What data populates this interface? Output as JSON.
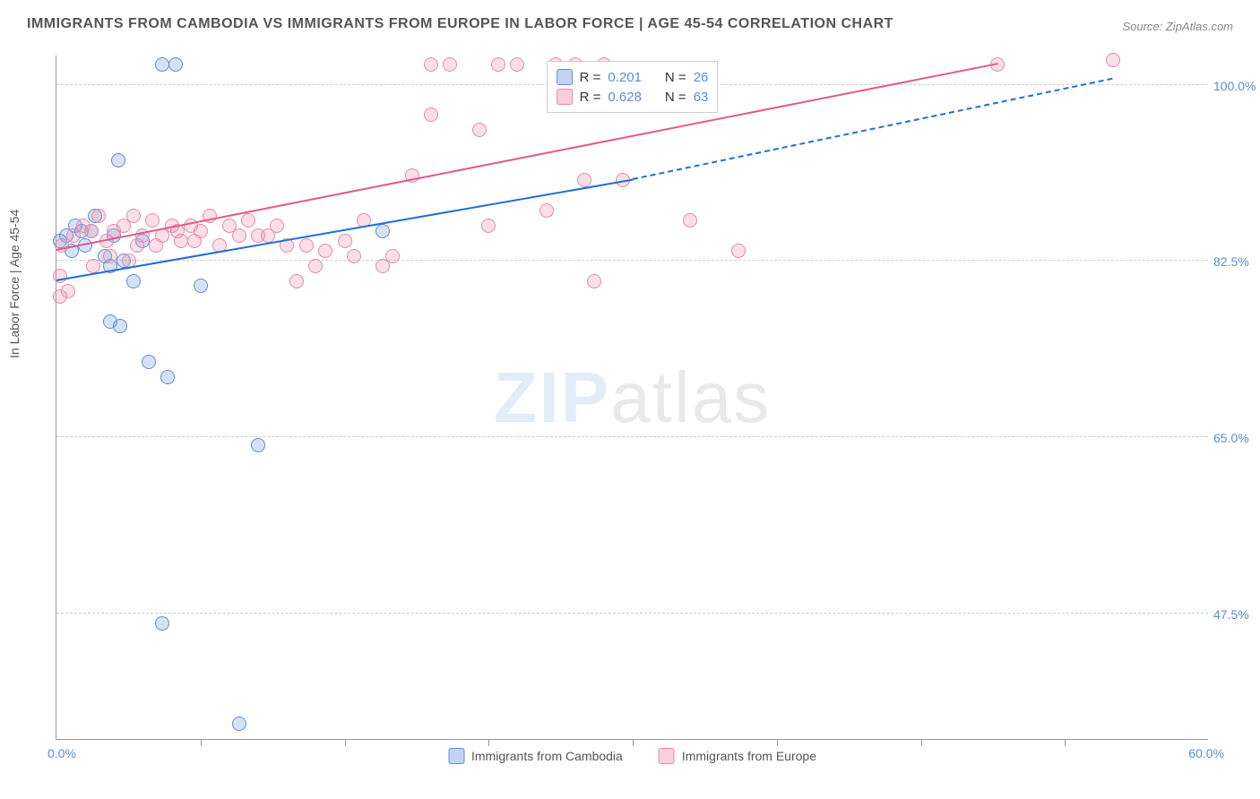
{
  "title": "IMMIGRANTS FROM CAMBODIA VS IMMIGRANTS FROM EUROPE IN LABOR FORCE | AGE 45-54 CORRELATION CHART",
  "source": "Source: ZipAtlas.com",
  "ylabel": "In Labor Force | Age 45-54",
  "watermark_a": "ZIP",
  "watermark_b": "atlas",
  "chart": {
    "type": "scatter",
    "xlim": [
      0,
      60
    ],
    "ylim": [
      35,
      103
    ],
    "x_min_label": "0.0%",
    "x_max_label": "60.0%",
    "y_ticks": [
      47.5,
      65.0,
      82.5,
      100.0
    ],
    "y_tick_labels": [
      "47.5%",
      "65.0%",
      "82.5%",
      "100.0%"
    ],
    "x_tick_positions": [
      7.5,
      15,
      22.5,
      30,
      37.5,
      45,
      52.5
    ],
    "grid_color": "#cccccc",
    "background_color": "#ffffff",
    "axis_color": "#999999",
    "label_color": "#555555",
    "tick_label_color": "#5b8dd6",
    "marker_radius": 8,
    "series": [
      {
        "name": "Immigrants from Cambodia",
        "color_fill": "rgba(120,160,220,0.3)",
        "color_stroke": "#5b8dd6",
        "r_value": "0.201",
        "n_value": "26",
        "regression": {
          "x1": 0,
          "y1": 80.5,
          "x2": 30,
          "y2": 90.5,
          "solid_end_x": 30,
          "extend_to_x": 55,
          "extend_to_y": 100.5,
          "color": "#1f6fd4"
        },
        "points": [
          [
            0.5,
            85
          ],
          [
            0.8,
            83.5
          ],
          [
            1,
            86
          ],
          [
            1.3,
            85.5
          ],
          [
            1.5,
            84
          ],
          [
            2,
            87
          ],
          [
            2.5,
            83
          ],
          [
            2.8,
            82
          ],
          [
            3,
            85
          ],
          [
            3.5,
            82.5
          ],
          [
            4,
            80.5
          ],
          [
            4.5,
            84.5
          ],
          [
            5.5,
            102
          ],
          [
            6.2,
            102
          ],
          [
            3.2,
            92.5
          ],
          [
            2.8,
            76.5
          ],
          [
            3.3,
            76
          ],
          [
            7.5,
            80
          ],
          [
            4.8,
            72.5
          ],
          [
            5.8,
            71
          ],
          [
            10.5,
            64.2
          ],
          [
            5.5,
            46.5
          ],
          [
            9.5,
            36.5
          ],
          [
            17,
            85.5
          ],
          [
            0.2,
            84.5
          ],
          [
            1.8,
            85.5
          ]
        ]
      },
      {
        "name": "Immigrants from Europe",
        "color_fill": "rgba(240,150,180,0.3)",
        "color_stroke": "#e68aaa",
        "r_value": "0.628",
        "n_value": "63",
        "regression": {
          "x1": 0,
          "y1": 83.5,
          "x2": 49,
          "y2": 102,
          "color": "#e05a8c"
        },
        "points": [
          [
            0.3,
            84
          ],
          [
            0.9,
            85
          ],
          [
            1.4,
            86
          ],
          [
            1.8,
            85.5
          ],
          [
            2.2,
            87
          ],
          [
            2.6,
            84.5
          ],
          [
            3.0,
            85.5
          ],
          [
            3.5,
            86
          ],
          [
            4.0,
            87
          ],
          [
            4.5,
            85
          ],
          [
            5.0,
            86.5
          ],
          [
            5.5,
            85
          ],
          [
            6.0,
            86
          ],
          [
            6.5,
            84.5
          ],
          [
            7.0,
            86
          ],
          [
            7.5,
            85.5
          ],
          [
            8.0,
            87
          ],
          [
            8.5,
            84
          ],
          [
            9.0,
            86
          ],
          [
            9.5,
            85
          ],
          [
            10.0,
            86.5
          ],
          [
            10.5,
            85
          ],
          [
            11.5,
            86
          ],
          [
            12.5,
            80.5
          ],
          [
            13,
            84
          ],
          [
            13.5,
            82
          ],
          [
            14,
            83.5
          ],
          [
            15,
            84.5
          ],
          [
            15.5,
            83
          ],
          [
            16,
            86.5
          ],
          [
            17,
            82
          ],
          [
            17.5,
            83
          ],
          [
            18.5,
            91
          ],
          [
            19.5,
            102
          ],
          [
            19.5,
            97
          ],
          [
            20.5,
            102
          ],
          [
            22,
            95.5
          ],
          [
            22.5,
            86
          ],
          [
            23,
            102
          ],
          [
            24,
            102
          ],
          [
            25.5,
            87.5
          ],
          [
            26,
            102
          ],
          [
            27,
            102
          ],
          [
            27.5,
            90.5
          ],
          [
            28,
            80.5
          ],
          [
            28.5,
            102
          ],
          [
            29.5,
            90.5
          ],
          [
            33,
            86.5
          ],
          [
            35.5,
            83.5
          ],
          [
            49,
            102
          ],
          [
            55,
            102.5
          ],
          [
            0.2,
            81
          ],
          [
            0.6,
            79.5
          ],
          [
            0.2,
            79
          ],
          [
            1.9,
            82
          ],
          [
            2.8,
            83
          ],
          [
            3.8,
            82.5
          ],
          [
            4.2,
            84
          ],
          [
            5.2,
            84
          ],
          [
            6.3,
            85.5
          ],
          [
            7.2,
            84.5
          ],
          [
            11,
            85
          ],
          [
            12,
            84
          ]
        ]
      }
    ]
  },
  "legend_top": {
    "rows": [
      {
        "swatch": "blue",
        "r_label": "R =",
        "r_val": "0.201",
        "n_label": "N =",
        "n_val": "26"
      },
      {
        "swatch": "pink",
        "r_label": "R =",
        "r_val": "0.628",
        "n_label": "N =",
        "n_val": "63"
      }
    ]
  },
  "legend_bottom": {
    "items": [
      {
        "swatch": "blue",
        "label": "Immigrants from Cambodia"
      },
      {
        "swatch": "pink",
        "label": "Immigrants from Europe"
      }
    ]
  }
}
